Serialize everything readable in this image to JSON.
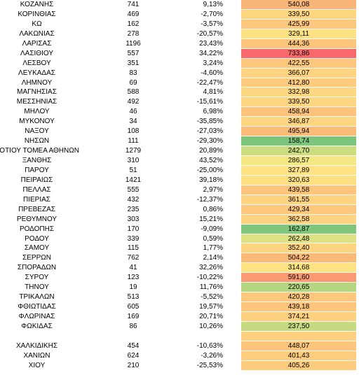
{
  "rows": [
    {
      "name": "ΚΟΖΑΝΗΣ",
      "count": "741",
      "pct": "9,13%",
      "value": "540,08",
      "color": "#f9b577"
    },
    {
      "name": "ΚΟΡΙΝΘΙΑΣ",
      "count": "469",
      "pct": "-2,70%",
      "value": "339,50",
      "color": "#fed682"
    },
    {
      "name": "ΚΩ",
      "count": "162",
      "pct": "-3,57%",
      "value": "425,99",
      "color": "#fdc77d"
    },
    {
      "name": "ΛΑΚΩΝΙΑΣ",
      "count": "278",
      "pct": "-20,57%",
      "value": "329,11",
      "color": "#fde283"
    },
    {
      "name": "ΛΑΡΙΣΑΣ",
      "count": "1196",
      "pct": "23,43%",
      "value": "444,36",
      "color": "#fdc57c"
    },
    {
      "name": "ΛΑΣΙΘΙΟΥ",
      "count": "557",
      "pct": "34,22%",
      "value": "733,86",
      "color": "#f8696b"
    },
    {
      "name": "ΛΕΣΒΟΥ",
      "count": "351",
      "pct": "3,24%",
      "value": "422,55",
      "color": "#fdc87d"
    },
    {
      "name": "ΛΕΥΚΑΔΑΣ",
      "count": "83",
      "pct": "-4,60%",
      "value": "366,07",
      "color": "#fed381"
    },
    {
      "name": "ΛΗΜΝΟΥ",
      "count": "69",
      "pct": "-22,47%",
      "value": "412,80",
      "color": "#fdca7e"
    },
    {
      "name": "ΜΑΓΝΗΣΙΑΣ",
      "count": "588",
      "pct": "4,81%",
      "value": "332,98",
      "color": "#fed782"
    },
    {
      "name": "ΜΕΣΣΗΝΙΑΣ",
      "count": "492",
      "pct": "-15,61%",
      "value": "339,50",
      "color": "#fed682"
    },
    {
      "name": "ΜΗΛΟΥ",
      "count": "46",
      "pct": "6,98%",
      "value": "458,94",
      "color": "#fdc27b"
    },
    {
      "name": "ΜΥΚΟΝΟΥ",
      "count": "34",
      "pct": "-35,85%",
      "value": "346,87",
      "color": "#fed581"
    },
    {
      "name": "ΝΑΞΟΥ",
      "count": "108",
      "pct": "-27,03%",
      "value": "495,94",
      "color": "#fbbb79"
    },
    {
      "name": "ΝΗΣΩΝ",
      "count": "111",
      "pct": "-29,30%",
      "value": "158,74",
      "color": "#7dc57c"
    },
    {
      "name": "ΝΟΤΙΟΥ ΤΟΜΕΑ ΑΘΗΝΩΝ",
      "count": "1279",
      "pct": "20,89%",
      "value": "242,70",
      "color": "#cbdc81"
    },
    {
      "name": "ΞΑΝΘΗΣ",
      "count": "310",
      "pct": "43,52%",
      "value": "286,57",
      "color": "#f3e884"
    },
    {
      "name": "ΠΑΡΟΥ",
      "count": "51",
      "pct": "-25,00%",
      "value": "327,89",
      "color": "#fee283"
    },
    {
      "name": "ΠΕΙΡΑΙΩΣ",
      "count": "1421",
      "pct": "39,18%",
      "value": "320,63",
      "color": "#fee083"
    },
    {
      "name": "ΠΕΛΛΑΣ",
      "count": "555",
      "pct": "2,97%",
      "value": "439,58",
      "color": "#fdc57c"
    },
    {
      "name": "ΠΙΕΡΙΑΣ",
      "count": "432",
      "pct": "-12,37%",
      "value": "361,55",
      "color": "#fed381"
    },
    {
      "name": "ΠΡΕΒΕΖΑΣ",
      "count": "235",
      "pct": "0,86%",
      "value": "429,34",
      "color": "#fdc77d"
    },
    {
      "name": "ΡΕΘΥΜΝΟΥ",
      "count": "303",
      "pct": "15,21%",
      "value": "362,58",
      "color": "#fed381"
    },
    {
      "name": "ΡΟΔΟΠΗΣ",
      "count": "170",
      "pct": "-9,09%",
      "value": "162,87",
      "color": "#80c67c"
    },
    {
      "name": "ΡΟΔΟΥ",
      "count": "339",
      "pct": "0,59%",
      "value": "262,48",
      "color": "#dfe283"
    },
    {
      "name": "ΣΑΜΟΥ",
      "count": "115",
      "pct": "1,77%",
      "value": "352,40",
      "color": "#fed481"
    },
    {
      "name": "ΣΕΡΡΩΝ",
      "count": "762",
      "pct": "2,14%",
      "value": "504,22",
      "color": "#fbba78"
    },
    {
      "name": "ΣΠΟΡΑΔΩΝ",
      "count": "41",
      "pct": "32,26%",
      "value": "314,68",
      "color": "#fee383"
    },
    {
      "name": "ΣΥΡΟΥ",
      "count": "123",
      "pct": "-10,22%",
      "value": "591,60",
      "color": "#f99a73"
    },
    {
      "name": "ΤΗΝΟΥ",
      "count": "19",
      "pct": "11,76%",
      "value": "220,65",
      "color": "#b5d680"
    },
    {
      "name": "ΤΡΙΚΑΛΩΝ",
      "count": "513",
      "pct": "-5,52%",
      "value": "420,28",
      "color": "#fdc87d"
    },
    {
      "name": "ΦΘΙΩΤΙΔΑΣ",
      "count": "605",
      "pct": "19,57%",
      "value": "439,18",
      "color": "#fdc57c"
    },
    {
      "name": "ΦΛΩΡΙΝΑΣ",
      "count": "169",
      "pct": "20,71%",
      "value": "374,21",
      "color": "#fed180"
    },
    {
      "name": "ΦΩΚΙΔΑΣ",
      "count": "86",
      "pct": "10,26%",
      "value": "237,50",
      "color": "#c6db81"
    },
    {
      "blank": true,
      "color": "#fed080"
    },
    {
      "name": "ΧΑΛΚΙΔΙΚΗΣ",
      "count": "454",
      "pct": "-10,63%",
      "value": "448,07",
      "color": "#fdc47c"
    },
    {
      "name": "ΧΑΝΙΩΝ",
      "count": "624",
      "pct": "-3,26%",
      "value": "401,43",
      "color": "#fdcc7e"
    },
    {
      "name": "ΧΙΟΥ",
      "count": "210",
      "pct": "-25,53%",
      "value": "405,26",
      "color": "#fdcb7e"
    }
  ]
}
